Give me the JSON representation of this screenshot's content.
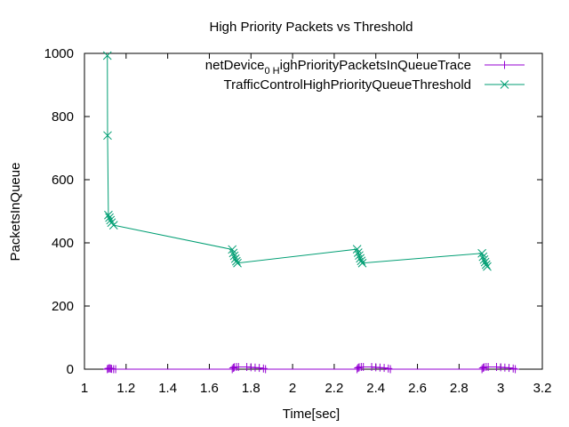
{
  "chart_data": {
    "type": "line",
    "title": "High Priority Packets vs Threshold",
    "xlabel": "Time[sec]",
    "ylabel": "PacketsInQueue",
    "xlim": [
      1,
      3.2
    ],
    "ylim": [
      0,
      1000
    ],
    "xticks": [
      "1",
      "1.2",
      "1.4",
      "1.6",
      "1.8",
      "2",
      "2.2",
      "2.4",
      "2.6",
      "2.8",
      "3",
      "3.2"
    ],
    "yticks": [
      "0",
      "200",
      "400",
      "600",
      "800",
      "1000"
    ],
    "grid": false,
    "legend_position": "top-right",
    "series": [
      {
        "name_base": "netDevice",
        "name_sub": "0 H",
        "name_rest": "ighPriorityPacketsInQueueTrace",
        "color": "#9400d3",
        "marker": "plus",
        "points": [
          [
            1.11,
            0
          ],
          [
            1.115,
            2
          ],
          [
            1.12,
            3
          ],
          [
            1.125,
            2
          ],
          [
            1.13,
            1
          ],
          [
            1.14,
            0
          ],
          [
            1.15,
            0
          ],
          [
            1.71,
            0
          ],
          [
            1.715,
            4
          ],
          [
            1.72,
            6
          ],
          [
            1.73,
            7
          ],
          [
            1.74,
            7
          ],
          [
            1.78,
            7
          ],
          [
            1.8,
            6
          ],
          [
            1.82,
            5
          ],
          [
            1.84,
            4
          ],
          [
            1.86,
            2
          ],
          [
            1.87,
            0
          ],
          [
            2.31,
            0
          ],
          [
            2.315,
            4
          ],
          [
            2.32,
            6
          ],
          [
            2.33,
            7
          ],
          [
            2.34,
            7
          ],
          [
            2.38,
            7
          ],
          [
            2.4,
            6
          ],
          [
            2.42,
            5
          ],
          [
            2.44,
            4
          ],
          [
            2.46,
            2
          ],
          [
            2.47,
            0
          ],
          [
            2.91,
            0
          ],
          [
            2.915,
            4
          ],
          [
            2.92,
            6
          ],
          [
            2.93,
            7
          ],
          [
            2.94,
            7
          ],
          [
            2.98,
            7
          ],
          [
            3.0,
            6
          ],
          [
            3.02,
            5
          ],
          [
            3.04,
            4
          ],
          [
            3.06,
            2
          ],
          [
            3.07,
            0
          ]
        ]
      },
      {
        "name": "TrafficControlHighPriorityQueueThreshold",
        "color": "#009e73",
        "marker": "x",
        "points": [
          [
            1.11,
            993
          ],
          [
            1.111,
            740
          ],
          [
            1.115,
            488
          ],
          [
            1.12,
            480
          ],
          [
            1.125,
            472
          ],
          [
            1.13,
            464
          ],
          [
            1.14,
            456
          ],
          [
            1.71,
            379
          ],
          [
            1.715,
            368
          ],
          [
            1.72,
            359
          ],
          [
            1.725,
            350
          ],
          [
            1.73,
            342
          ],
          [
            1.735,
            336
          ],
          [
            2.31,
            380
          ],
          [
            2.315,
            369
          ],
          [
            2.32,
            360
          ],
          [
            2.325,
            351
          ],
          [
            2.33,
            343
          ],
          [
            2.335,
            336
          ],
          [
            2.91,
            367
          ],
          [
            2.915,
            356
          ],
          [
            2.92,
            347
          ],
          [
            2.925,
            339
          ],
          [
            2.93,
            331
          ],
          [
            2.935,
            325
          ]
        ]
      }
    ]
  }
}
